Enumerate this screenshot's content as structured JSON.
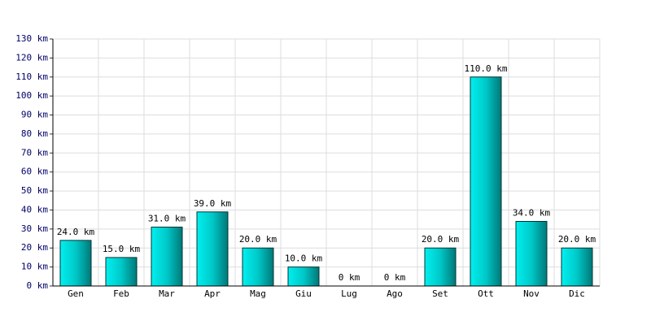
{
  "chart_data": {
    "type": "bar",
    "categories": [
      "Gen",
      "Feb",
      "Mar",
      "Apr",
      "Mag",
      "Giu",
      "Lug",
      "Ago",
      "Set",
      "Ott",
      "Nov",
      "Dic"
    ],
    "values": [
      24,
      15,
      31,
      39,
      20,
      10,
      0,
      0,
      20,
      110,
      34,
      20
    ],
    "value_labels": [
      "24.0 km",
      "15.0 km",
      "31.0 km",
      "39.0 km",
      "20.0 km",
      "10.0 km",
      "0 km",
      "0 km",
      "20.0 km",
      "110.0 km",
      "34.0 km",
      "20.0 km"
    ],
    "color": "#00cccc",
    "ylim": [
      0,
      130
    ],
    "yticks": [
      {
        "value": 0,
        "label": "0 km"
      },
      {
        "value": 10,
        "label": "10 km"
      },
      {
        "value": 20,
        "label": "20 km"
      },
      {
        "value": 30,
        "label": "30 km"
      },
      {
        "value": 40,
        "label": "40 km"
      },
      {
        "value": 50,
        "label": "50 km"
      },
      {
        "value": 60,
        "label": "60 km"
      },
      {
        "value": 70,
        "label": "70 km"
      },
      {
        "value": 80,
        "label": "80 km"
      },
      {
        "value": 90,
        "label": "90 km"
      },
      {
        "value": 100,
        "label": "100 km"
      },
      {
        "value": 110,
        "label": "110 km"
      },
      {
        "value": 120,
        "label": "120 km"
      },
      {
        "value": 130,
        "label": "130 km"
      }
    ],
    "grid": true
  }
}
